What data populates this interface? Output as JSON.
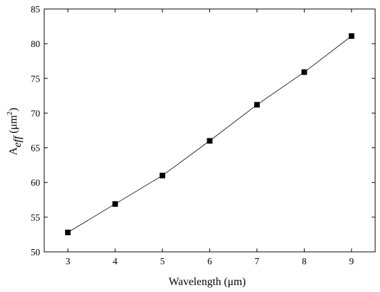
{
  "chart_data": {
    "type": "line",
    "title": "",
    "xlabel": "Wavelength (μm)",
    "ylabel": {
      "base": "A",
      "subscript": "eff",
      "unit_open": " (μm",
      "unit_sup": "2",
      "unit_close": ")"
    },
    "xlim": [
      2.5,
      9.5
    ],
    "ylim": [
      50,
      85
    ],
    "xticks": [
      3,
      4,
      5,
      6,
      7,
      8,
      9
    ],
    "yticks": [
      50,
      55,
      60,
      65,
      70,
      75,
      80,
      85
    ],
    "grid": false,
    "legend": "none",
    "marker": "square",
    "colors": {
      "series": "#000000",
      "axes": "#000000"
    },
    "series": [
      {
        "x": [
          3,
          4,
          5,
          6,
          7,
          8,
          9
        ],
        "values": [
          52.8,
          56.9,
          61.0,
          66.0,
          71.2,
          75.9,
          81.1
        ]
      }
    ]
  }
}
